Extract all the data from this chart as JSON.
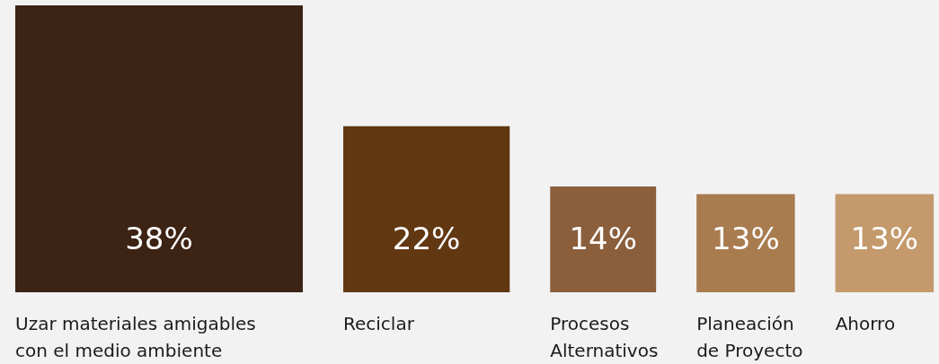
{
  "chart_data": {
    "type": "bar",
    "categories": [
      "Uzar materiales amigables con el medio ambiente",
      "Reciclar",
      "Procesos Alternativos",
      "Planeación de Proyecto",
      "Ahorro"
    ],
    "values": [
      38,
      22,
      14,
      13,
      13
    ],
    "colors": [
      "#3c2314",
      "#623813",
      "#8b5e3c",
      "#a97c50",
      "#c49a6c"
    ],
    "value_labels": [
      "38%",
      "22%",
      "14%",
      "13%",
      "13%"
    ]
  }
}
